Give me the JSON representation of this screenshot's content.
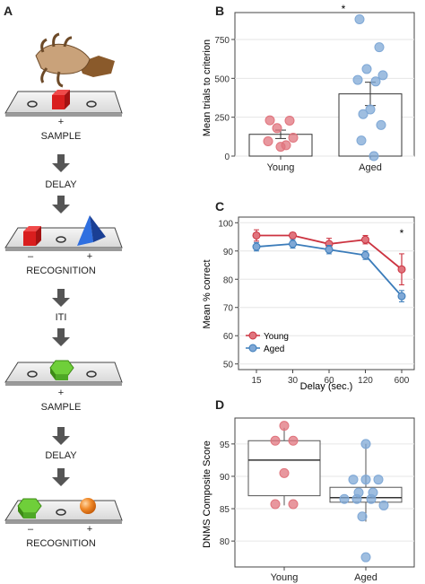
{
  "panels": {
    "a": "A",
    "b": "B",
    "c": "C",
    "d": "D"
  },
  "flow": {
    "steps": [
      {
        "label": "SAMPLE",
        "sign": "+"
      },
      {
        "label": "DELAY"
      },
      {
        "label": "RECOGNITION",
        "minus": "–",
        "plus": "+"
      },
      {
        "label": "ITI"
      },
      {
        "label": "SAMPLE",
        "sign": "+"
      },
      {
        "label": "DELAY"
      },
      {
        "label": "RECOGNITION",
        "minus": "–",
        "plus": "+"
      }
    ]
  },
  "colors": {
    "young": "#e0747d",
    "aged": "#7fa8d6",
    "young_line": "#cc3340",
    "aged_line": "#3b7cba"
  },
  "chart_data": [
    {
      "type": "bar",
      "panel": "B",
      "categories": [
        "Young",
        "Aged"
      ],
      "values": [
        140,
        400
      ],
      "errors": [
        27,
        75
      ],
      "points": {
        "Young": [
          230,
          228,
          180,
          118,
          95,
          70,
          60
        ],
        "Aged": [
          880,
          700,
          560,
          520,
          490,
          480,
          300,
          270,
          200,
          100,
          0
        ]
      },
      "ylabel": "Mean trials to criterion",
      "yticks": [
        0,
        250,
        500,
        750
      ],
      "ylim": [
        0,
        900
      ],
      "annotation": "*",
      "grid": true
    },
    {
      "type": "line",
      "panel": "C",
      "x": [
        "15",
        "30",
        "60",
        "120",
        "600"
      ],
      "series": [
        {
          "name": "Young",
          "values": [
            95.5,
            95.5,
            92.5,
            94,
            83.5
          ],
          "errors": [
            2,
            1,
            2,
            1.5,
            5.5
          ]
        },
        {
          "name": "Aged",
          "values": [
            91.5,
            92.5,
            90.5,
            88.5,
            74
          ],
          "errors": [
            1.5,
            1.5,
            1.5,
            1.5,
            2
          ]
        }
      ],
      "xlabel": "Delay (sec.)",
      "ylabel": "Mean % correct",
      "yticks": [
        50,
        60,
        70,
        80,
        90,
        100
      ],
      "ylim": [
        48,
        102
      ],
      "annotation": "*",
      "legend": "bottom-left",
      "grid": true
    },
    {
      "type": "box",
      "panel": "D",
      "categories": [
        "Young",
        "Aged"
      ],
      "boxes": [
        {
          "q1": 87,
          "median": 92.5,
          "q3": 95.5,
          "min": 85.5,
          "max": 97.5
        },
        {
          "q1": 86,
          "median": 86.7,
          "q3": 88.3,
          "min": 83,
          "max": 95
        }
      ],
      "points": {
        "Young": [
          97.8,
          95.5,
          95.5,
          90.5,
          85.7,
          85.7
        ],
        "Aged": [
          95,
          89.5,
          89.5,
          89.5,
          87.5,
          87.5,
          86.5,
          86.5,
          86.5,
          85.5,
          83.8,
          77.5
        ]
      },
      "ylabel": "DNMS Composite Score",
      "yticks": [
        80,
        85,
        90,
        95
      ],
      "ylim": [
        76,
        99
      ],
      "grid": true
    }
  ]
}
